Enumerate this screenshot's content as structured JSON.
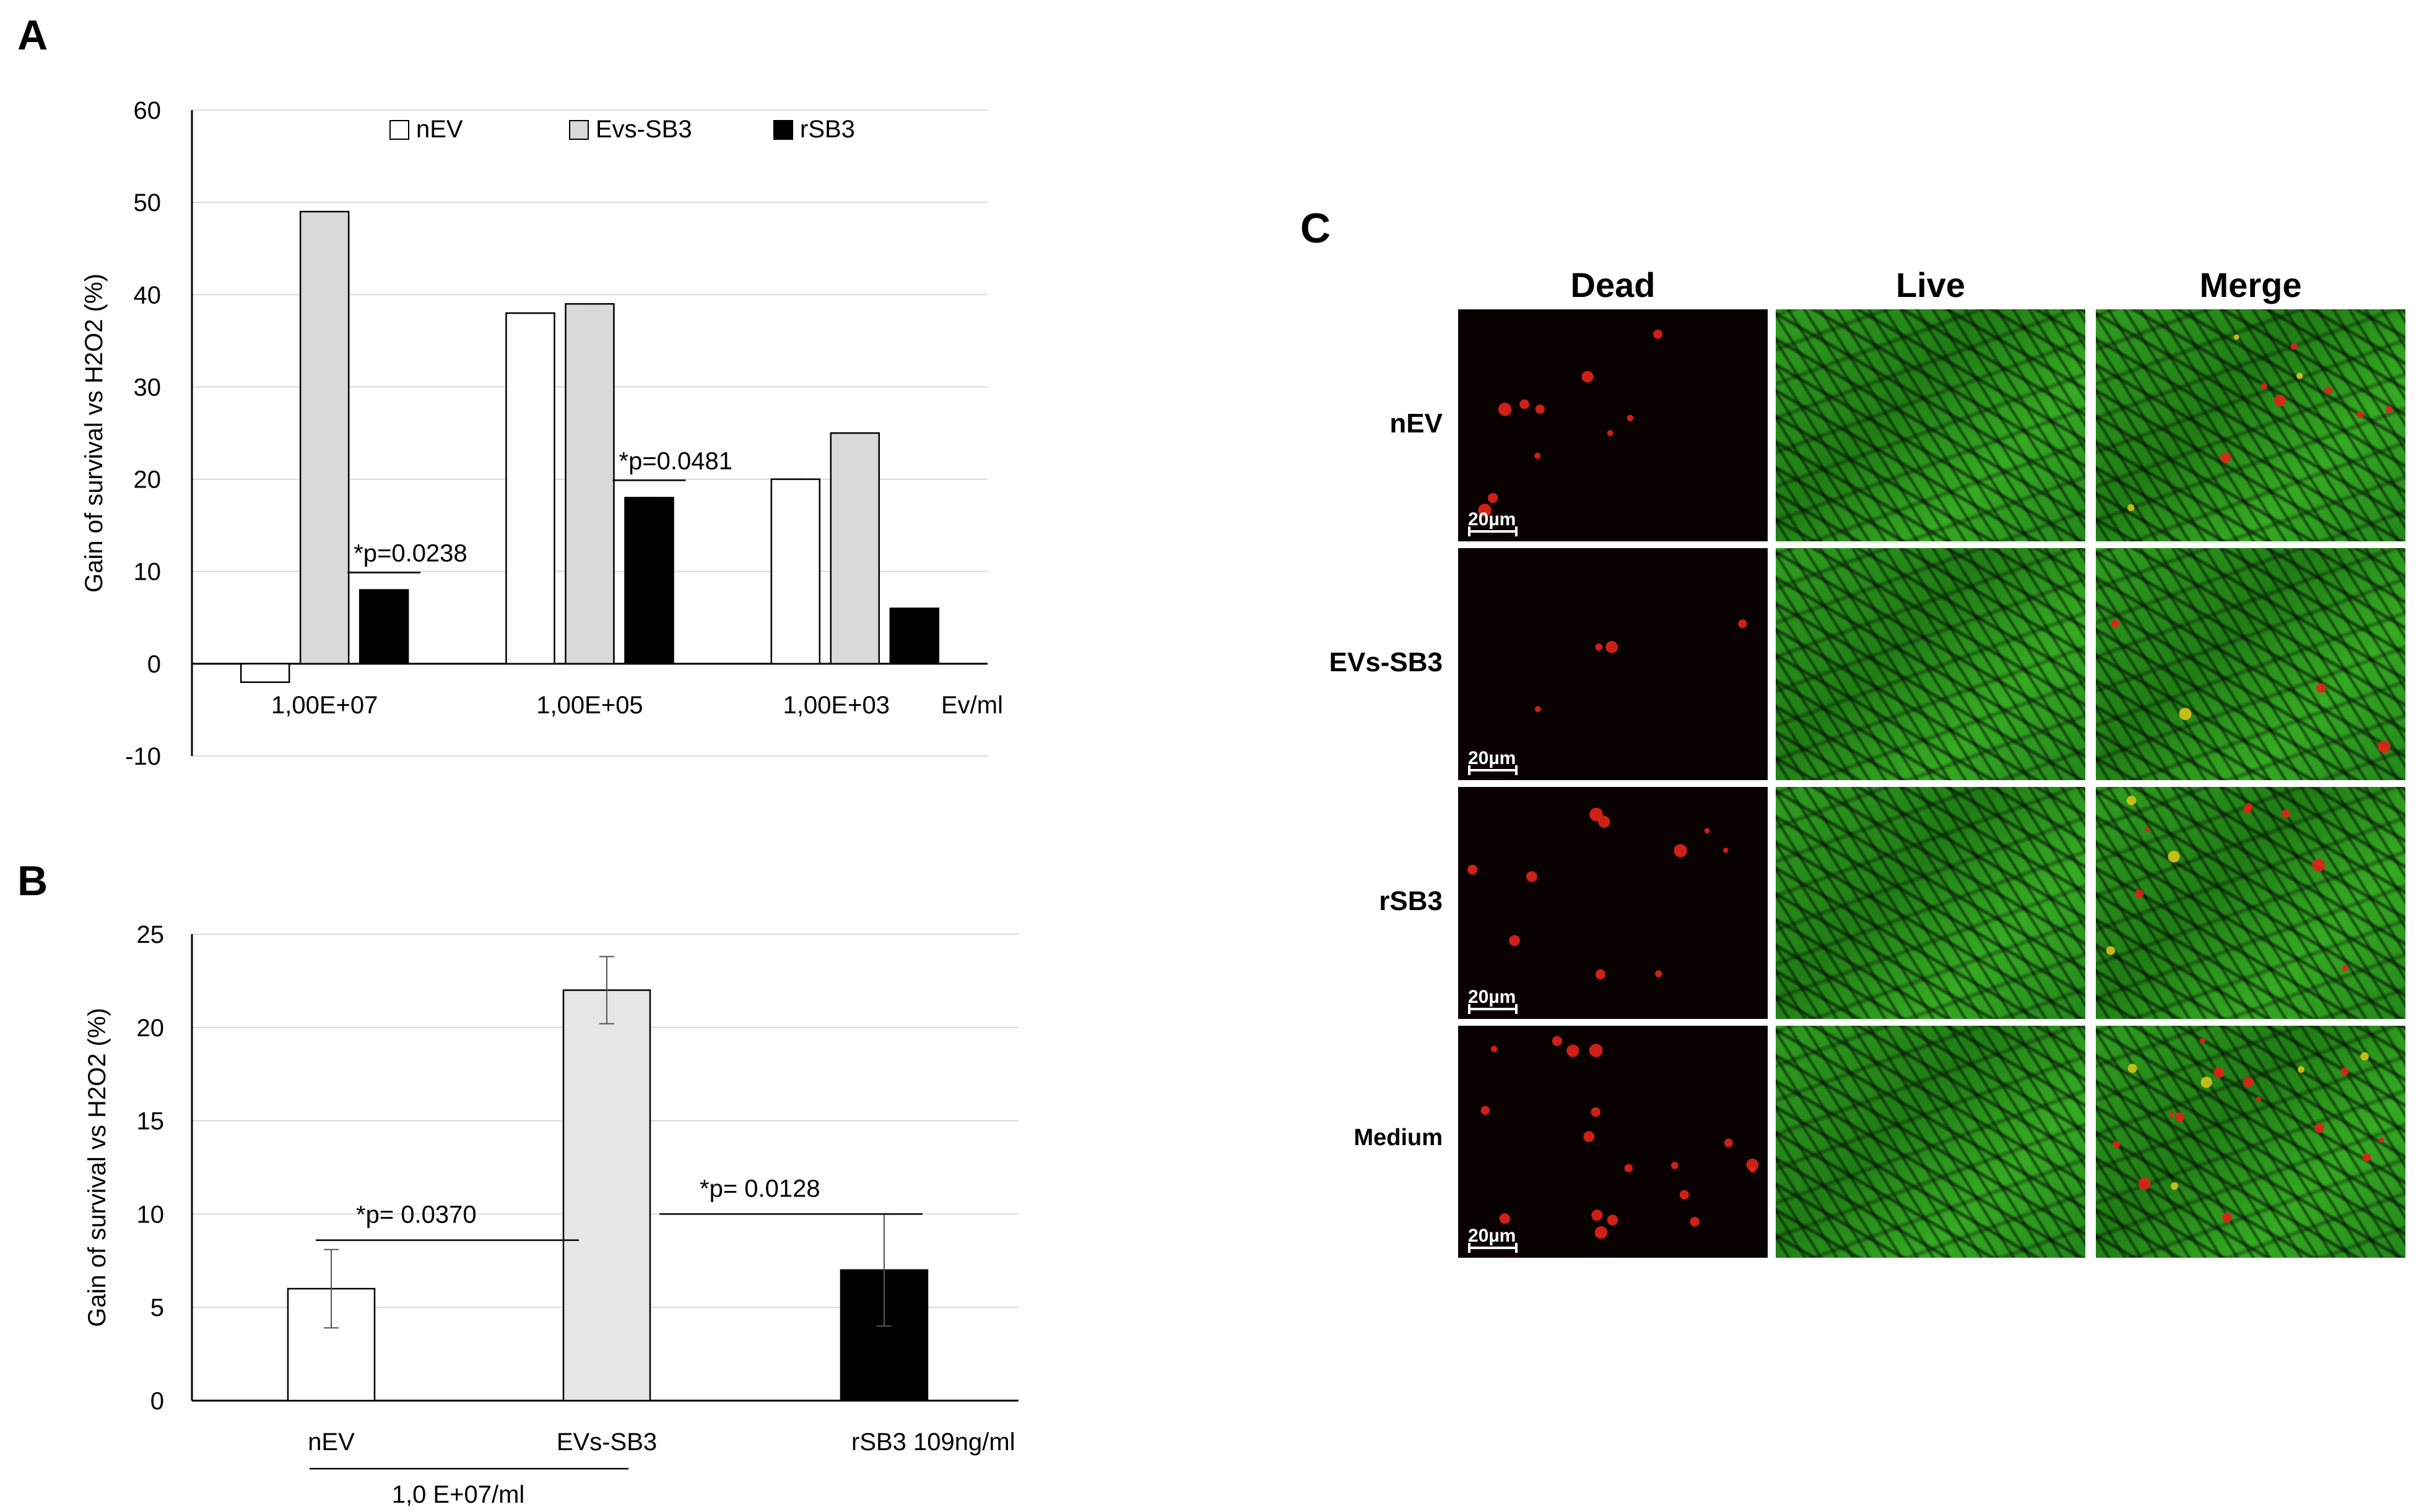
{
  "panels": {
    "a": "A",
    "b": "B",
    "c": "C"
  },
  "chart_data": [
    {
      "panel": "A",
      "type": "bar",
      "ylabel": "Gain of survival vs H2O2 (%)",
      "ylim": [
        -10,
        60
      ],
      "yticks": [
        "-10",
        "0",
        "10",
        "20",
        "30",
        "40",
        "50",
        "60"
      ],
      "grid": true,
      "categories": [
        "1,00E+07",
        "1,00E+05",
        "1,00E+03"
      ],
      "xunit": "Ev/ml",
      "legend_position": "top",
      "series": [
        {
          "name": "nEV",
          "values": [
            -2,
            38,
            20
          ],
          "color": "#ffffff"
        },
        {
          "name": "Evs-SB3",
          "values": [
            49,
            39,
            25
          ],
          "color": "#d9d9d9"
        },
        {
          "name": "rSB3",
          "values": [
            8,
            18,
            6
          ],
          "color": "#000000"
        }
      ],
      "annotations": [
        "*p=0.0238",
        "*p=0.0481"
      ]
    },
    {
      "panel": "B",
      "type": "bar",
      "ylabel": "Gain of survival vs H2O2 (%)",
      "ylim": [
        0,
        25
      ],
      "yticks": [
        "0",
        "5",
        "10",
        "15",
        "20",
        "25"
      ],
      "grid": true,
      "categories": [
        "nEV",
        "EVs-SB3",
        "rSB3  109ng/ml"
      ],
      "values": [
        6,
        22,
        7
      ],
      "errors": [
        2.1,
        1.8,
        3.0
      ],
      "colors": [
        "#ffffff",
        "#e6e6e6",
        "#000000"
      ],
      "group_label": "1,0 E+07/ml",
      "annotations": [
        "*p= 0.0370",
        "*p= 0.0128"
      ]
    }
  ],
  "microscopy": {
    "columns": [
      "Dead",
      "Live",
      "Merge"
    ],
    "rows": [
      "nEV",
      "EVs-SB3",
      "rSB3",
      "Medium"
    ],
    "scale_label": "20µm",
    "colors": {
      "dead_stain": "#e3231a",
      "live_stain": "#2fa31f",
      "background": "#090100"
    }
  }
}
